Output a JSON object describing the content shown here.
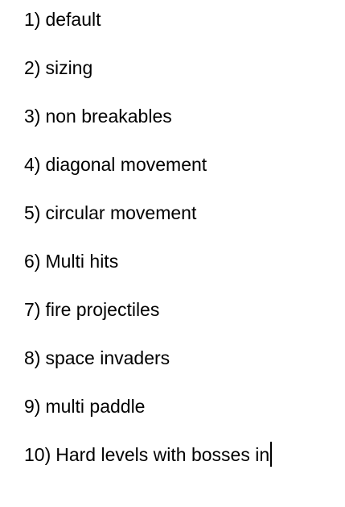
{
  "document": {
    "items": [
      {
        "number": "1)",
        "text": "default"
      },
      {
        "number": "2)",
        "text": "sizing"
      },
      {
        "number": "3)",
        "text": "non breakables"
      },
      {
        "number": "4)",
        "text": "diagonal movement"
      },
      {
        "number": "5)",
        "text": "circular movement"
      },
      {
        "number": "6)",
        "text": "Multi hits"
      },
      {
        "number": "7)",
        "text": "fire projectiles"
      },
      {
        "number": "8)",
        "text": "space invaders"
      },
      {
        "number": "9)",
        "text": "multi paddle"
      },
      {
        "number": "10)",
        "text": "Hard levels with bosses in"
      }
    ]
  }
}
